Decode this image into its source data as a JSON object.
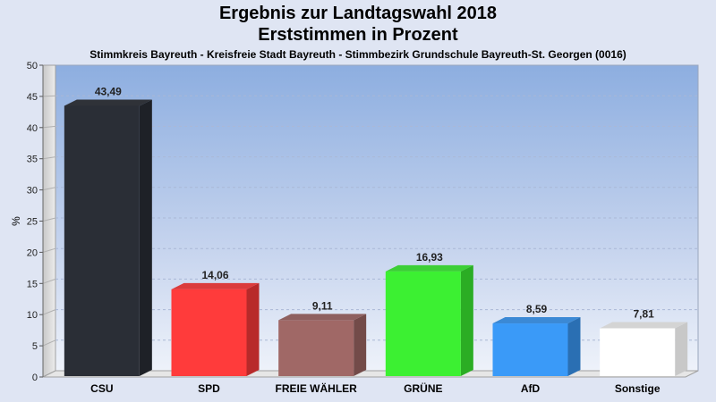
{
  "title_line1": "Ergebnis zur Landtagswahl 2018",
  "title_line2": "Erststimmen in Prozent",
  "subtitle": "Stimmkreis Bayreuth - Kreisfreie Stadt Bayreuth - Stimmbezirk Grundschule Bayreuth-St. Georgen (0016)",
  "chart_data": {
    "type": "bar",
    "title": "Ergebnis zur Landtagswahl 2018 Erststimmen in Prozent",
    "subtitle": "Stimmkreis Bayreuth - Kreisfreie Stadt Bayreuth - Stimmbezirk Grundschule Bayreuth-St. Georgen (0016)",
    "xlabel": "",
    "ylabel": "%",
    "ylim": [
      0,
      50
    ],
    "yticks": [
      0,
      5,
      10,
      15,
      20,
      25,
      30,
      35,
      40,
      45,
      50
    ],
    "grid": true,
    "categories": [
      "CSU",
      "SPD",
      "FREIE WÄHLER",
      "GRÜNE",
      "AfD",
      "Sonstige"
    ],
    "values": [
      43.49,
      14.06,
      9.11,
      16.93,
      8.59,
      7.81
    ],
    "value_labels": [
      "43,49",
      "14,06",
      "9,11",
      "16,93",
      "8,59",
      "7,81"
    ],
    "colors": [
      "#2a2e36",
      "#ff3b3b",
      "#a06866",
      "#3cf032",
      "#3a9af8",
      "#ffffff"
    ]
  }
}
